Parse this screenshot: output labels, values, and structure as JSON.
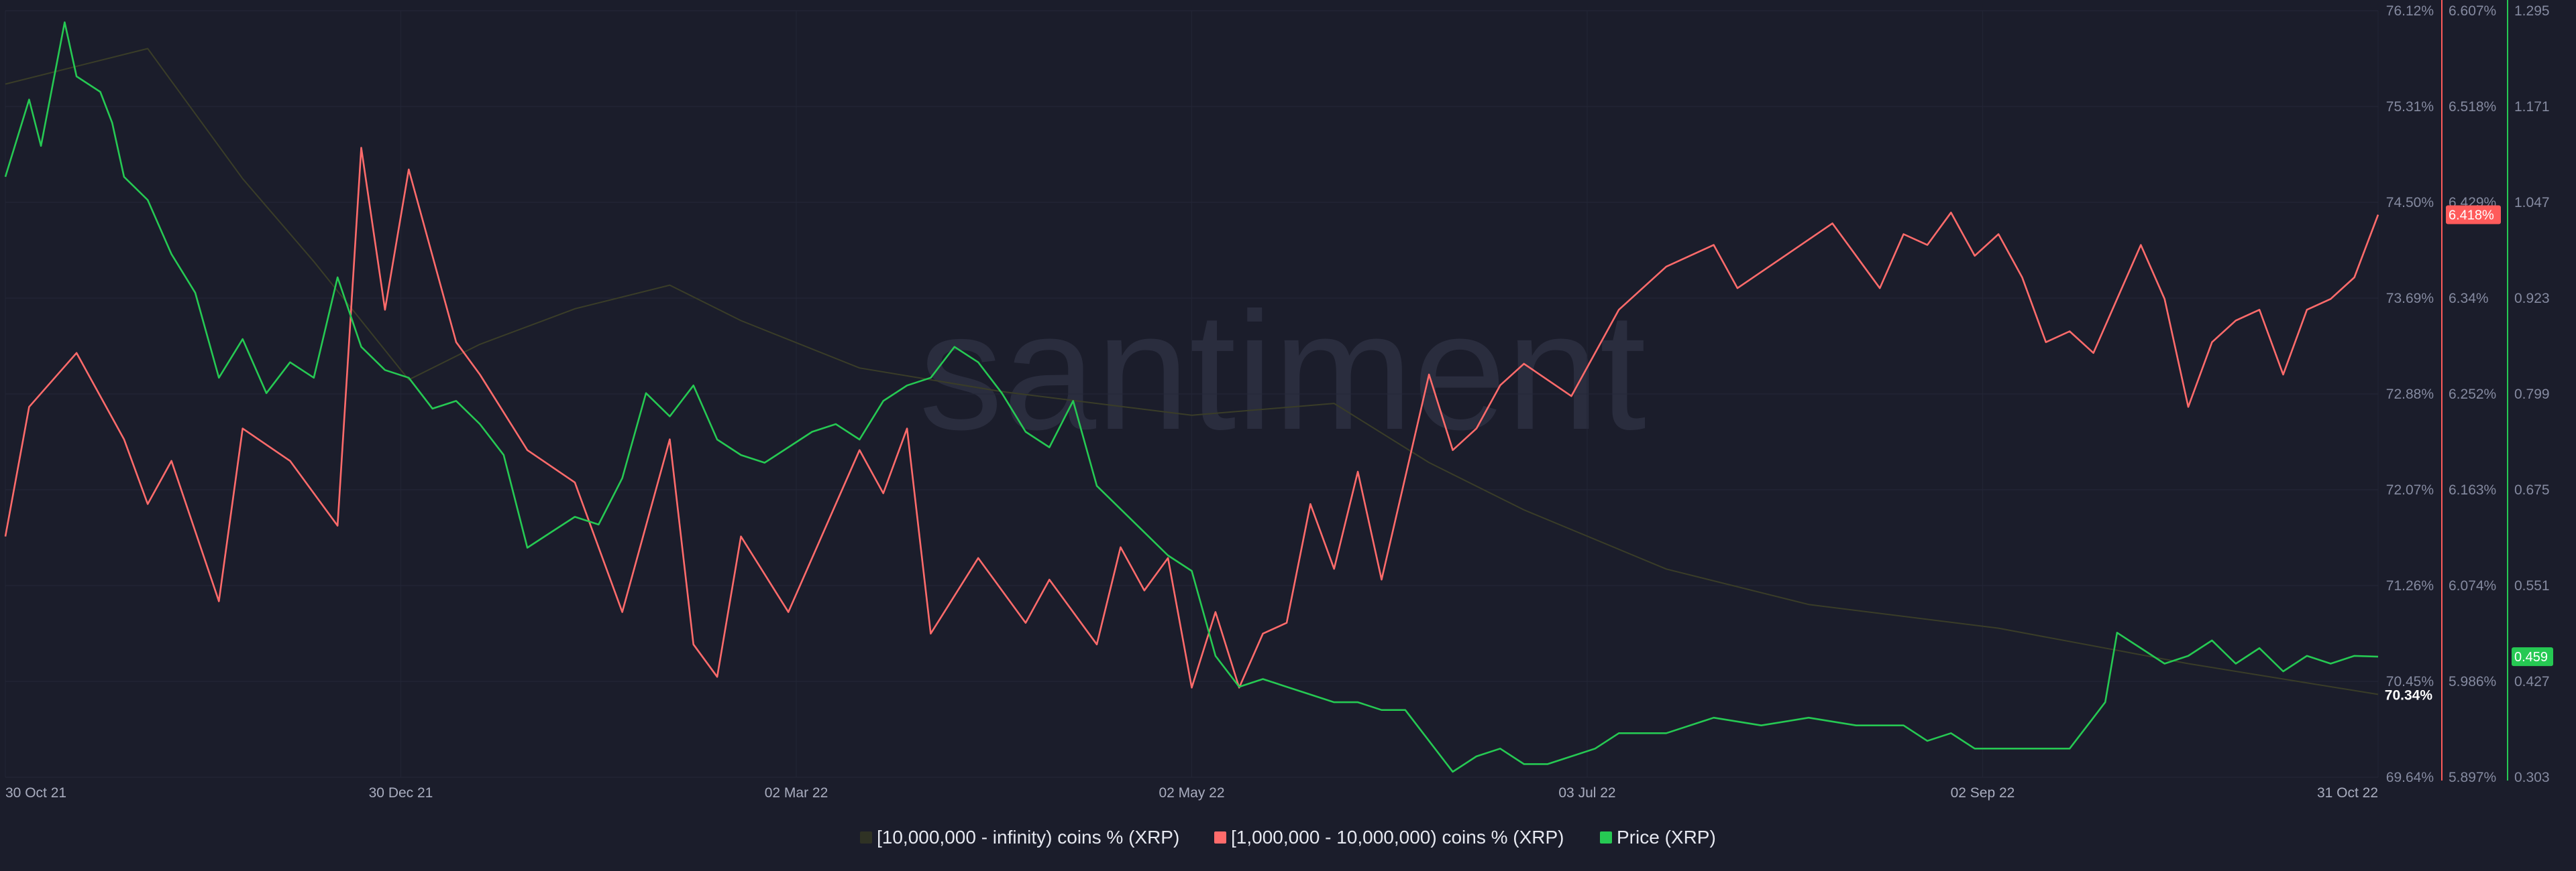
{
  "watermark": "santiment",
  "chart_data": {
    "type": "line",
    "x_tick_labels": [
      "30 Oct 21",
      "30 Dec 21",
      "02 Mar 22",
      "02 May 22",
      "03 Jul 22",
      "02 Sep 22",
      "31 Oct 22"
    ],
    "x_range": [
      "2021-10-30",
      "2022-10-31"
    ],
    "axes": [
      {
        "id": "axis-whales-pct",
        "ticks": [
          "76.12%",
          "75.31%",
          "74.50%",
          "73.69%",
          "72.88%",
          "72.07%",
          "71.26%",
          "70.45%",
          "69.64%"
        ],
        "ylim": [
          69.64,
          76.12
        ],
        "color": "#858aa0"
      },
      {
        "id": "axis-mid-pct",
        "ticks": [
          "6.607%",
          "6.518%",
          "6.429%",
          "6.34%",
          "6.252%",
          "6.163%",
          "6.074%",
          "5.986%",
          "5.897%"
        ],
        "ylim": [
          5.897,
          6.607
        ],
        "color": "#ff5b5b"
      },
      {
        "id": "axis-price",
        "ticks": [
          "1.295",
          "1.171",
          "1.047",
          "0.923",
          "0.799",
          "0.675",
          "0.551",
          "0.427",
          "0.303"
        ],
        "ylim": [
          0.303,
          1.295
        ],
        "color": "#26c953"
      }
    ],
    "series": [
      {
        "name": "[10,000,000 - infinity) coins % (XRP)",
        "color": "#3a3d28",
        "axis": 0,
        "points": [
          [
            0,
            75.5
          ],
          [
            0.06,
            75.8
          ],
          [
            0.1,
            74.7
          ],
          [
            0.13,
            74.0
          ],
          [
            0.17,
            73.0
          ],
          [
            0.2,
            73.3
          ],
          [
            0.24,
            73.6
          ],
          [
            0.28,
            73.8
          ],
          [
            0.31,
            73.5
          ],
          [
            0.36,
            73.1
          ],
          [
            0.42,
            72.9
          ],
          [
            0.5,
            72.7
          ],
          [
            0.56,
            72.8
          ],
          [
            0.6,
            72.3
          ],
          [
            0.64,
            71.9
          ],
          [
            0.7,
            71.4
          ],
          [
            0.76,
            71.1
          ],
          [
            0.84,
            70.9
          ],
          [
            0.92,
            70.6
          ],
          [
            1.0,
            70.34
          ]
        ],
        "last_label": "70.34%"
      },
      {
        "name": "[1,000,000 - 10,000,000) coins % (XRP)",
        "color": "#ff6b6b",
        "axis": 1,
        "points": [
          [
            0,
            6.12
          ],
          [
            0.01,
            6.24
          ],
          [
            0.03,
            6.29
          ],
          [
            0.05,
            6.21
          ],
          [
            0.06,
            6.15
          ],
          [
            0.07,
            6.19
          ],
          [
            0.09,
            6.06
          ],
          [
            0.1,
            6.22
          ],
          [
            0.12,
            6.19
          ],
          [
            0.14,
            6.13
          ],
          [
            0.15,
            6.48
          ],
          [
            0.16,
            6.33
          ],
          [
            0.17,
            6.46
          ],
          [
            0.19,
            6.3
          ],
          [
            0.2,
            6.27
          ],
          [
            0.22,
            6.2
          ],
          [
            0.24,
            6.17
          ],
          [
            0.26,
            6.05
          ],
          [
            0.28,
            6.21
          ],
          [
            0.29,
            6.02
          ],
          [
            0.3,
            5.99
          ],
          [
            0.31,
            6.12
          ],
          [
            0.33,
            6.05
          ],
          [
            0.35,
            6.15
          ],
          [
            0.36,
            6.2
          ],
          [
            0.37,
            6.16
          ],
          [
            0.38,
            6.22
          ],
          [
            0.39,
            6.03
          ],
          [
            0.41,
            6.1
          ],
          [
            0.43,
            6.04
          ],
          [
            0.44,
            6.08
          ],
          [
            0.46,
            6.02
          ],
          [
            0.47,
            6.11
          ],
          [
            0.48,
            6.07
          ],
          [
            0.49,
            6.1
          ],
          [
            0.5,
            5.98
          ],
          [
            0.51,
            6.05
          ],
          [
            0.52,
            5.98
          ],
          [
            0.53,
            6.03
          ],
          [
            0.54,
            6.04
          ],
          [
            0.55,
            6.15
          ],
          [
            0.56,
            6.09
          ],
          [
            0.57,
            6.18
          ],
          [
            0.58,
            6.08
          ],
          [
            0.6,
            6.27
          ],
          [
            0.61,
            6.2
          ],
          [
            0.62,
            6.22
          ],
          [
            0.63,
            6.26
          ],
          [
            0.64,
            6.28
          ],
          [
            0.66,
            6.25
          ],
          [
            0.68,
            6.33
          ],
          [
            0.7,
            6.37
          ],
          [
            0.72,
            6.39
          ],
          [
            0.73,
            6.35
          ],
          [
            0.75,
            6.38
          ],
          [
            0.77,
            6.41
          ],
          [
            0.78,
            6.38
          ],
          [
            0.79,
            6.35
          ],
          [
            0.8,
            6.4
          ],
          [
            0.81,
            6.39
          ],
          [
            0.82,
            6.42
          ],
          [
            0.83,
            6.38
          ],
          [
            0.84,
            6.4
          ],
          [
            0.85,
            6.36
          ],
          [
            0.86,
            6.3
          ],
          [
            0.87,
            6.31
          ],
          [
            0.88,
            6.29
          ],
          [
            0.89,
            6.34
          ],
          [
            0.9,
            6.39
          ],
          [
            0.91,
            6.34
          ],
          [
            0.92,
            6.24
          ],
          [
            0.93,
            6.3
          ],
          [
            0.94,
            6.32
          ],
          [
            0.95,
            6.33
          ],
          [
            0.96,
            6.27
          ],
          [
            0.97,
            6.33
          ],
          [
            0.98,
            6.34
          ],
          [
            0.99,
            6.36
          ],
          [
            1.0,
            6.418
          ]
        ],
        "last_label": "6.418%"
      },
      {
        "name": "Price (XRP)",
        "color": "#26c953",
        "axis": 2,
        "points": [
          [
            0,
            1.08
          ],
          [
            0.01,
            1.18
          ],
          [
            0.015,
            1.12
          ],
          [
            0.02,
            1.2
          ],
          [
            0.025,
            1.28
          ],
          [
            0.03,
            1.21
          ],
          [
            0.04,
            1.19
          ],
          [
            0.045,
            1.15
          ],
          [
            0.05,
            1.08
          ],
          [
            0.06,
            1.05
          ],
          [
            0.07,
            0.98
          ],
          [
            0.08,
            0.93
          ],
          [
            0.09,
            0.82
          ],
          [
            0.1,
            0.87
          ],
          [
            0.11,
            0.8
          ],
          [
            0.12,
            0.84
          ],
          [
            0.13,
            0.82
          ],
          [
            0.14,
            0.95
          ],
          [
            0.15,
            0.86
          ],
          [
            0.16,
            0.83
          ],
          [
            0.17,
            0.82
          ],
          [
            0.18,
            0.78
          ],
          [
            0.19,
            0.79
          ],
          [
            0.2,
            0.76
          ],
          [
            0.21,
            0.72
          ],
          [
            0.22,
            0.6
          ],
          [
            0.23,
            0.62
          ],
          [
            0.24,
            0.64
          ],
          [
            0.25,
            0.63
          ],
          [
            0.26,
            0.69
          ],
          [
            0.27,
            0.8
          ],
          [
            0.28,
            0.77
          ],
          [
            0.29,
            0.81
          ],
          [
            0.3,
            0.74
          ],
          [
            0.31,
            0.72
          ],
          [
            0.32,
            0.71
          ],
          [
            0.33,
            0.73
          ],
          [
            0.34,
            0.75
          ],
          [
            0.35,
            0.76
          ],
          [
            0.36,
            0.74
          ],
          [
            0.37,
            0.79
          ],
          [
            0.38,
            0.81
          ],
          [
            0.39,
            0.82
          ],
          [
            0.4,
            0.86
          ],
          [
            0.41,
            0.84
          ],
          [
            0.42,
            0.8
          ],
          [
            0.43,
            0.75
          ],
          [
            0.44,
            0.73
          ],
          [
            0.45,
            0.79
          ],
          [
            0.46,
            0.68
          ],
          [
            0.47,
            0.65
          ],
          [
            0.48,
            0.62
          ],
          [
            0.49,
            0.59
          ],
          [
            0.5,
            0.57
          ],
          [
            0.51,
            0.46
          ],
          [
            0.52,
            0.42
          ],
          [
            0.53,
            0.43
          ],
          [
            0.54,
            0.42
          ],
          [
            0.55,
            0.41
          ],
          [
            0.56,
            0.4
          ],
          [
            0.57,
            0.4
          ],
          [
            0.58,
            0.39
          ],
          [
            0.59,
            0.39
          ],
          [
            0.6,
            0.35
          ],
          [
            0.61,
            0.31
          ],
          [
            0.62,
            0.33
          ],
          [
            0.63,
            0.34
          ],
          [
            0.64,
            0.32
          ],
          [
            0.65,
            0.32
          ],
          [
            0.66,
            0.33
          ],
          [
            0.67,
            0.34
          ],
          [
            0.68,
            0.36
          ],
          [
            0.7,
            0.36
          ],
          [
            0.72,
            0.38
          ],
          [
            0.74,
            0.37
          ],
          [
            0.76,
            0.38
          ],
          [
            0.78,
            0.37
          ],
          [
            0.8,
            0.37
          ],
          [
            0.81,
            0.35
          ],
          [
            0.82,
            0.36
          ],
          [
            0.83,
            0.34
          ],
          [
            0.84,
            0.34
          ],
          [
            0.85,
            0.34
          ],
          [
            0.86,
            0.34
          ],
          [
            0.87,
            0.34
          ],
          [
            0.88,
            0.38
          ],
          [
            0.885,
            0.4
          ],
          [
            0.89,
            0.49
          ],
          [
            0.9,
            0.47
          ],
          [
            0.91,
            0.45
          ],
          [
            0.92,
            0.46
          ],
          [
            0.93,
            0.48
          ],
          [
            0.94,
            0.45
          ],
          [
            0.95,
            0.47
          ],
          [
            0.96,
            0.44
          ],
          [
            0.97,
            0.46
          ],
          [
            0.98,
            0.45
          ],
          [
            0.99,
            0.46
          ],
          [
            1.0,
            0.459
          ]
        ],
        "last_label": "0.459"
      }
    ]
  }
}
